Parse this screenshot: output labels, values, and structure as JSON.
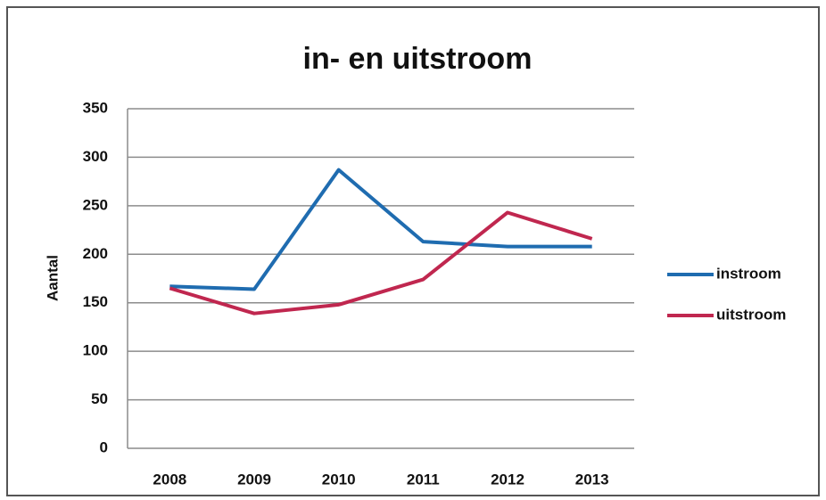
{
  "chart_data": {
    "type": "line",
    "title": "in- en uitstroom",
    "y_label": "Aantal",
    "categories": [
      "2008",
      "2009",
      "2010",
      "2011",
      "2012",
      "2013"
    ],
    "series": [
      {
        "name": "instroom",
        "color": "#1f6cb0",
        "values": [
          167,
          164,
          287,
          213,
          208,
          208
        ]
      },
      {
        "name": "uitstroom",
        "color": "#c0274f",
        "values": [
          165,
          139,
          148,
          174,
          243,
          216
        ]
      }
    ],
    "ylim": [
      0,
      350
    ],
    "yticks": [
      0,
      50,
      100,
      150,
      200,
      250,
      300,
      350
    ],
    "grid": true,
    "legend": "right"
  }
}
